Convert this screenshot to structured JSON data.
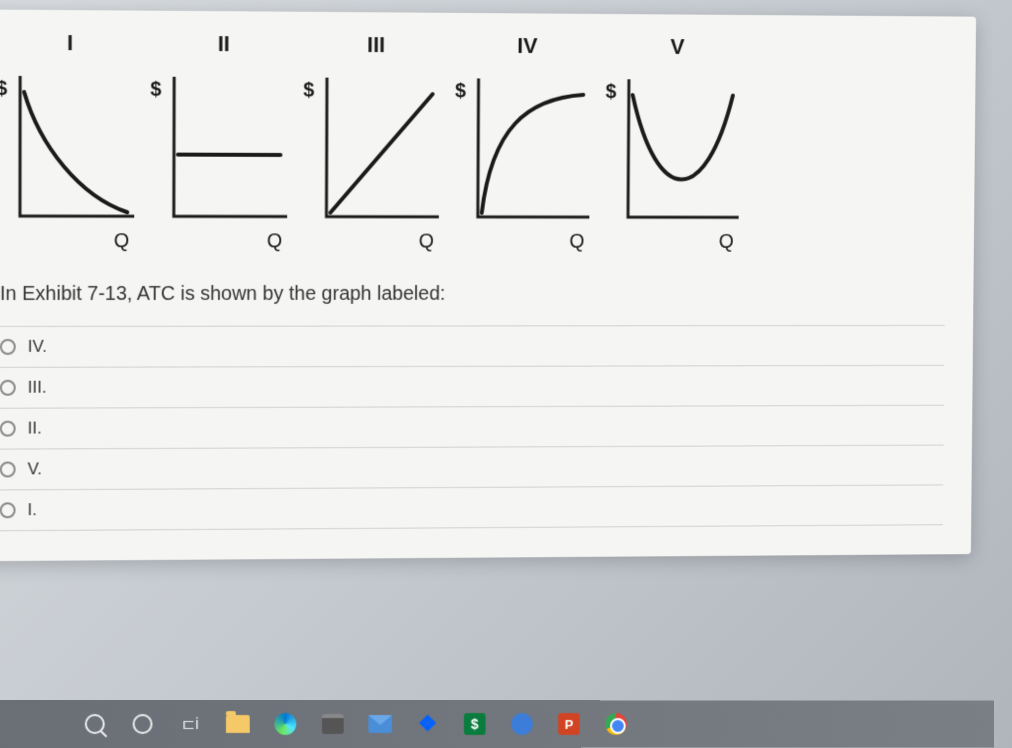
{
  "graphs": {
    "ylabel": "$",
    "xlabel": "Q",
    "panels": [
      {
        "header": "I",
        "curve_type": "down"
      },
      {
        "header": "II",
        "curve_type": "flat"
      },
      {
        "header": "III",
        "curve_type": "up"
      },
      {
        "header": "IV",
        "curve_type": "concave"
      },
      {
        "header": "V",
        "curve_type": "ushaped"
      }
    ],
    "axis_color": "#1a1a1a",
    "curve_color": "#1a1a1a",
    "axis_width": 3,
    "curve_width": 4
  },
  "question": "In Exhibit 7-13, ATC is shown by the graph labeled:",
  "options": [
    {
      "label": "IV."
    },
    {
      "label": "III."
    },
    {
      "label": "II."
    },
    {
      "label": "V."
    },
    {
      "label": "I."
    }
  ],
  "taskbar": {
    "finance_label": "$",
    "powerpoint_label": "P",
    "dropbox_glyph": "❖"
  }
}
